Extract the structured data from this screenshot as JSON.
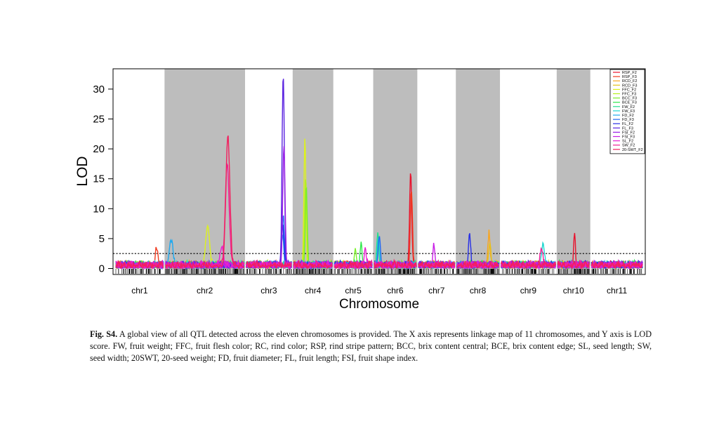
{
  "chart_data": {
    "type": "line",
    "xlabel": "Chromosome",
    "ylabel": "LOD",
    "ylim": [
      0,
      33.5
    ],
    "yticks": [
      0,
      5,
      10,
      15,
      20,
      25,
      30
    ],
    "threshold": 2.5,
    "shading": "alternate grey bands on even chromosomes",
    "legend_position": "top-right",
    "chromosomes": [
      {
        "name": "chr1",
        "len": 68
      },
      {
        "name": "chr2",
        "len": 112
      },
      {
        "name": "chr3",
        "len": 65
      },
      {
        "name": "chr4",
        "len": 55
      },
      {
        "name": "chr5",
        "len": 54
      },
      {
        "name": "chr6",
        "len": 60
      },
      {
        "name": "chr7",
        "len": 52
      },
      {
        "name": "chr8",
        "len": 60
      },
      {
        "name": "chr9",
        "len": 78
      },
      {
        "name": "chr10",
        "len": 45
      },
      {
        "name": "chr11",
        "len": 73
      }
    ],
    "series": [
      {
        "name": "RSP_F2",
        "color": "#E8122D",
        "peaks": [
          {
            "chr": 5,
            "pos": 52,
            "lod": 16.0
          },
          {
            "chr": 9,
            "pos": 24,
            "lod": 5.9
          }
        ]
      },
      {
        "name": "RSP_F3",
        "color": "#F13A1F",
        "peaks": [
          {
            "chr": 5,
            "pos": 53,
            "lod": 12.5
          },
          {
            "chr": 0,
            "pos": 58,
            "lod": 2.9
          }
        ]
      },
      {
        "name": "RCD_F2",
        "color": "#F9A51E",
        "peaks": [
          {
            "chr": 7,
            "pos": 46,
            "lod": 5.7
          }
        ]
      },
      {
        "name": "RCD_F3",
        "color": "#E6C21A",
        "peaks": [
          {
            "chr": 7,
            "pos": 47,
            "lod": 3.9
          }
        ]
      },
      {
        "name": "FFC_F2",
        "color": "#DDF21C",
        "peaks": [
          {
            "chr": 1,
            "pos": 60,
            "lod": 6.7
          },
          {
            "chr": 3,
            "pos": 16,
            "lod": 21.5
          }
        ]
      },
      {
        "name": "FFC_F3",
        "color": "#B5F11C",
        "peaks": [
          {
            "chr": 3,
            "pos": 17,
            "lod": 15.0
          }
        ]
      },
      {
        "name": "BCC_F3",
        "color": "#7CF029",
        "peaks": [
          {
            "chr": 3,
            "pos": 18,
            "lod": 13.0
          },
          {
            "chr": 4,
            "pos": 30,
            "lod": 3.0
          }
        ]
      },
      {
        "name": "BCE_F3",
        "color": "#2EE84A",
        "peaks": [
          {
            "chr": 4,
            "pos": 38,
            "lod": 3.5
          }
        ]
      },
      {
        "name": "FW_F2",
        "color": "#22E08E",
        "peaks": [
          {
            "chr": 5,
            "pos": 5,
            "lod": 5.2
          }
        ]
      },
      {
        "name": "FW_F3",
        "color": "#1FD6D0",
        "peaks": [
          {
            "chr": 5,
            "pos": 6,
            "lod": 4.6
          },
          {
            "chr": 8,
            "pos": 60,
            "lod": 3.6
          }
        ]
      },
      {
        "name": "FD_F2",
        "color": "#1EA9F0",
        "peaks": [
          {
            "chr": 1,
            "pos": 8,
            "lod": 4.0
          },
          {
            "chr": 2,
            "pos": 52,
            "lod": 5.0
          }
        ]
      },
      {
        "name": "FD_F3",
        "color": "#2268F2",
        "peaks": [
          {
            "chr": 2,
            "pos": 53,
            "lod": 8.2
          },
          {
            "chr": 5,
            "pos": 7,
            "lod": 5.0
          }
        ]
      },
      {
        "name": "FL_F2",
        "color": "#2830E6",
        "peaks": [
          {
            "chr": 2,
            "pos": 52,
            "lod": 7.5
          },
          {
            "chr": 7,
            "pos": 18,
            "lod": 5.0
          }
        ]
      },
      {
        "name": "FL_F3",
        "color": "#5A22E0",
        "peaks": [
          {
            "chr": 2,
            "pos": 53,
            "lod": 32.0
          }
        ]
      },
      {
        "name": "FSI_F2",
        "color": "#9A1FE6",
        "peaks": [
          {
            "chr": 2,
            "pos": 54,
            "lod": 20.0
          }
        ]
      },
      {
        "name": "FSI_F3",
        "color": "#C81FE6",
        "peaks": [
          {
            "chr": 6,
            "pos": 22,
            "lod": 3.5
          }
        ]
      },
      {
        "name": "SL_F2",
        "color": "#E81FD0",
        "peaks": [
          {
            "chr": 4,
            "pos": 44,
            "lod": 3.3
          },
          {
            "chr": 1,
            "pos": 80,
            "lod": 3.0
          }
        ]
      },
      {
        "name": "SW_F2",
        "color": "#F01F96",
        "peaks": [
          {
            "chr": 1,
            "pos": 88,
            "lod": 17.0
          },
          {
            "chr": 8,
            "pos": 58,
            "lod": 3.0
          }
        ]
      },
      {
        "name": "20-SWT_F2",
        "color": "#F21F5E",
        "peaks": [
          {
            "chr": 1,
            "pos": 89,
            "lod": 21.8
          }
        ]
      }
    ]
  },
  "caption": {
    "lead": "Fig. S4.",
    "text": " A global view of all QTL detected across the eleven chromosomes is provided. The X axis represents linkage map of 11 chromosomes, and Y axis is LOD score. FW, fruit weight; FFC, fruit flesh color; RC, rind color; RSP, rind stripe pattern; BCC, brix content central; BCE, brix content edge; SL, seed length; SW, seed width; 20SWT, 20-seed weight; FD, fruit diameter; FL, fruit length; FSI, fruit shape index."
  }
}
